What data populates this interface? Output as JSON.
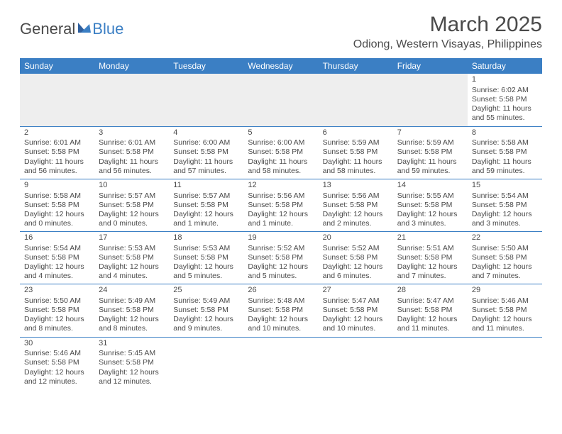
{
  "logo": {
    "general": "General",
    "blue": "Blue"
  },
  "title": "March 2025",
  "location": "Odiong, Western Visayas, Philippines",
  "colors": {
    "header_bg": "#3b7fc4",
    "header_text": "#ffffff",
    "text": "#4a4a4a",
    "blank_bg": "#eeeeee",
    "border": "#3b7fc4",
    "page_bg": "#ffffff"
  },
  "weekdays": [
    "Sunday",
    "Monday",
    "Tuesday",
    "Wednesday",
    "Thursday",
    "Friday",
    "Saturday"
  ],
  "rows": [
    [
      {
        "blank": true
      },
      {
        "blank": true
      },
      {
        "blank": true
      },
      {
        "blank": true
      },
      {
        "blank": true
      },
      {
        "blank": true
      },
      {
        "day": "1",
        "sunrise": "Sunrise: 6:02 AM",
        "sunset": "Sunset: 5:58 PM",
        "daylight": "Daylight: 11 hours and 55 minutes."
      }
    ],
    [
      {
        "day": "2",
        "sunrise": "Sunrise: 6:01 AM",
        "sunset": "Sunset: 5:58 PM",
        "daylight": "Daylight: 11 hours and 56 minutes."
      },
      {
        "day": "3",
        "sunrise": "Sunrise: 6:01 AM",
        "sunset": "Sunset: 5:58 PM",
        "daylight": "Daylight: 11 hours and 56 minutes."
      },
      {
        "day": "4",
        "sunrise": "Sunrise: 6:00 AM",
        "sunset": "Sunset: 5:58 PM",
        "daylight": "Daylight: 11 hours and 57 minutes."
      },
      {
        "day": "5",
        "sunrise": "Sunrise: 6:00 AM",
        "sunset": "Sunset: 5:58 PM",
        "daylight": "Daylight: 11 hours and 58 minutes."
      },
      {
        "day": "6",
        "sunrise": "Sunrise: 5:59 AM",
        "sunset": "Sunset: 5:58 PM",
        "daylight": "Daylight: 11 hours and 58 minutes."
      },
      {
        "day": "7",
        "sunrise": "Sunrise: 5:59 AM",
        "sunset": "Sunset: 5:58 PM",
        "daylight": "Daylight: 11 hours and 59 minutes."
      },
      {
        "day": "8",
        "sunrise": "Sunrise: 5:58 AM",
        "sunset": "Sunset: 5:58 PM",
        "daylight": "Daylight: 11 hours and 59 minutes."
      }
    ],
    [
      {
        "day": "9",
        "sunrise": "Sunrise: 5:58 AM",
        "sunset": "Sunset: 5:58 PM",
        "daylight": "Daylight: 12 hours and 0 minutes."
      },
      {
        "day": "10",
        "sunrise": "Sunrise: 5:57 AM",
        "sunset": "Sunset: 5:58 PM",
        "daylight": "Daylight: 12 hours and 0 minutes."
      },
      {
        "day": "11",
        "sunrise": "Sunrise: 5:57 AM",
        "sunset": "Sunset: 5:58 PM",
        "daylight": "Daylight: 12 hours and 1 minute."
      },
      {
        "day": "12",
        "sunrise": "Sunrise: 5:56 AM",
        "sunset": "Sunset: 5:58 PM",
        "daylight": "Daylight: 12 hours and 1 minute."
      },
      {
        "day": "13",
        "sunrise": "Sunrise: 5:56 AM",
        "sunset": "Sunset: 5:58 PM",
        "daylight": "Daylight: 12 hours and 2 minutes."
      },
      {
        "day": "14",
        "sunrise": "Sunrise: 5:55 AM",
        "sunset": "Sunset: 5:58 PM",
        "daylight": "Daylight: 12 hours and 3 minutes."
      },
      {
        "day": "15",
        "sunrise": "Sunrise: 5:54 AM",
        "sunset": "Sunset: 5:58 PM",
        "daylight": "Daylight: 12 hours and 3 minutes."
      }
    ],
    [
      {
        "day": "16",
        "sunrise": "Sunrise: 5:54 AM",
        "sunset": "Sunset: 5:58 PM",
        "daylight": "Daylight: 12 hours and 4 minutes."
      },
      {
        "day": "17",
        "sunrise": "Sunrise: 5:53 AM",
        "sunset": "Sunset: 5:58 PM",
        "daylight": "Daylight: 12 hours and 4 minutes."
      },
      {
        "day": "18",
        "sunrise": "Sunrise: 5:53 AM",
        "sunset": "Sunset: 5:58 PM",
        "daylight": "Daylight: 12 hours and 5 minutes."
      },
      {
        "day": "19",
        "sunrise": "Sunrise: 5:52 AM",
        "sunset": "Sunset: 5:58 PM",
        "daylight": "Daylight: 12 hours and 5 minutes."
      },
      {
        "day": "20",
        "sunrise": "Sunrise: 5:52 AM",
        "sunset": "Sunset: 5:58 PM",
        "daylight": "Daylight: 12 hours and 6 minutes."
      },
      {
        "day": "21",
        "sunrise": "Sunrise: 5:51 AM",
        "sunset": "Sunset: 5:58 PM",
        "daylight": "Daylight: 12 hours and 7 minutes."
      },
      {
        "day": "22",
        "sunrise": "Sunrise: 5:50 AM",
        "sunset": "Sunset: 5:58 PM",
        "daylight": "Daylight: 12 hours and 7 minutes."
      }
    ],
    [
      {
        "day": "23",
        "sunrise": "Sunrise: 5:50 AM",
        "sunset": "Sunset: 5:58 PM",
        "daylight": "Daylight: 12 hours and 8 minutes."
      },
      {
        "day": "24",
        "sunrise": "Sunrise: 5:49 AM",
        "sunset": "Sunset: 5:58 PM",
        "daylight": "Daylight: 12 hours and 8 minutes."
      },
      {
        "day": "25",
        "sunrise": "Sunrise: 5:49 AM",
        "sunset": "Sunset: 5:58 PM",
        "daylight": "Daylight: 12 hours and 9 minutes."
      },
      {
        "day": "26",
        "sunrise": "Sunrise: 5:48 AM",
        "sunset": "Sunset: 5:58 PM",
        "daylight": "Daylight: 12 hours and 10 minutes."
      },
      {
        "day": "27",
        "sunrise": "Sunrise: 5:47 AM",
        "sunset": "Sunset: 5:58 PM",
        "daylight": "Daylight: 12 hours and 10 minutes."
      },
      {
        "day": "28",
        "sunrise": "Sunrise: 5:47 AM",
        "sunset": "Sunset: 5:58 PM",
        "daylight": "Daylight: 12 hours and 11 minutes."
      },
      {
        "day": "29",
        "sunrise": "Sunrise: 5:46 AM",
        "sunset": "Sunset: 5:58 PM",
        "daylight": "Daylight: 12 hours and 11 minutes."
      }
    ],
    [
      {
        "day": "30",
        "sunrise": "Sunrise: 5:46 AM",
        "sunset": "Sunset: 5:58 PM",
        "daylight": "Daylight: 12 hours and 12 minutes."
      },
      {
        "day": "31",
        "sunrise": "Sunrise: 5:45 AM",
        "sunset": "Sunset: 5:58 PM",
        "daylight": "Daylight: 12 hours and 12 minutes."
      },
      {
        "empty": true
      },
      {
        "empty": true
      },
      {
        "empty": true
      },
      {
        "empty": true
      },
      {
        "empty": true
      }
    ]
  ]
}
